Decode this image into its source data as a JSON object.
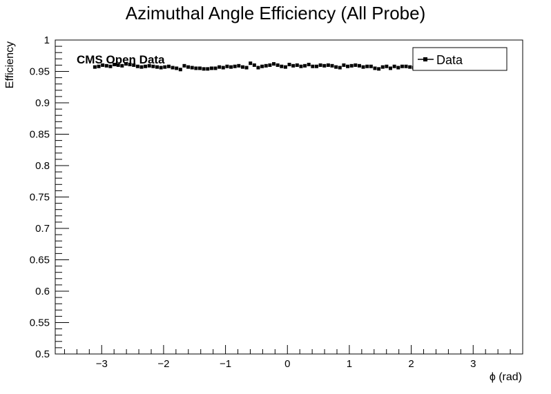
{
  "chart_data": {
    "type": "scatter",
    "title": "Azimuthal Angle Efficiency (All Probe)",
    "xlabel": "ϕ (rad)",
    "ylabel": "Efficiency",
    "xlim": [
      -3.75,
      3.8
    ],
    "ylim": [
      0.5,
      1.0
    ],
    "x_ticks": [
      -3,
      -2,
      -1,
      0,
      1,
      2,
      3
    ],
    "x_tick_labels": [
      "−3",
      "−2",
      "−1",
      "0",
      "1",
      "2",
      "3"
    ],
    "y_ticks": [
      0.5,
      0.55,
      0.6,
      0.65,
      0.7,
      0.75,
      0.8,
      0.85,
      0.9,
      0.95,
      1.0
    ],
    "y_tick_labels": [
      "0.5",
      "0.55",
      "0.6",
      "0.65",
      "0.7",
      "0.75",
      "0.8",
      "0.85",
      "0.9",
      "0.95",
      "1"
    ],
    "annotation": "CMS Open Data",
    "legend": {
      "placement": "top-right",
      "entries": [
        "Data"
      ]
    },
    "series": [
      {
        "name": "Data",
        "x": [
          -3.1101,
          -3.0473,
          -2.9845,
          -2.9216,
          -2.8588,
          -2.796,
          -2.7332,
          -2.6704,
          -2.6075,
          -2.5447,
          -2.4819,
          -2.4191,
          -2.3562,
          -2.2934,
          -2.2306,
          -2.1678,
          -2.1049,
          -2.0421,
          -1.9793,
          -1.9165,
          -1.8536,
          -1.7908,
          -1.728,
          -1.6652,
          -1.6023,
          -1.5395,
          -1.4767,
          -1.4139,
          -1.351,
          -1.2882,
          -1.2254,
          -1.1626,
          -1.0997,
          -1.0369,
          -0.9741,
          -0.9113,
          -0.8485,
          -0.7856,
          -0.7228,
          -0.66,
          -0.5972,
          -0.5343,
          -0.4715,
          -0.4087,
          -0.3459,
          -0.283,
          -0.2202,
          -0.1574,
          -0.0946,
          -0.0317,
          0.0311,
          0.0939,
          0.1567,
          0.2196,
          0.2824,
          0.3452,
          0.408,
          0.4709,
          0.5337,
          0.5965,
          0.6593,
          0.7222,
          0.785,
          0.8478,
          0.9106,
          0.9734,
          1.0363,
          1.0991,
          1.1619,
          1.2247,
          1.2876,
          1.3504,
          1.4132,
          1.476,
          1.5389,
          1.6017,
          1.6645,
          1.7273,
          1.7902,
          1.853,
          1.9158,
          1.9786,
          2.0415,
          2.1043,
          2.1671,
          2.2299,
          2.2928,
          2.3556,
          2.4184,
          2.4812,
          2.544,
          2.6069,
          2.6697,
          2.7325,
          2.7953,
          2.8582,
          2.921,
          2.9838,
          3.0466,
          3.1095
        ],
        "y": [
          0.957,
          0.958,
          0.96,
          0.959,
          0.958,
          0.961,
          0.96,
          0.959,
          0.962,
          0.961,
          0.96,
          0.958,
          0.957,
          0.958,
          0.959,
          0.958,
          0.957,
          0.956,
          0.957,
          0.958,
          0.956,
          0.955,
          0.953,
          0.959,
          0.957,
          0.956,
          0.955,
          0.955,
          0.954,
          0.954,
          0.955,
          0.955,
          0.957,
          0.956,
          0.958,
          0.957,
          0.958,
          0.959,
          0.957,
          0.956,
          0.963,
          0.96,
          0.956,
          0.958,
          0.959,
          0.96,
          0.962,
          0.96,
          0.958,
          0.957,
          0.961,
          0.959,
          0.96,
          0.958,
          0.959,
          0.961,
          0.958,
          0.958,
          0.96,
          0.959,
          0.96,
          0.959,
          0.957,
          0.956,
          0.96,
          0.958,
          0.959,
          0.96,
          0.959,
          0.957,
          0.958,
          0.958,
          0.955,
          0.954,
          0.957,
          0.958,
          0.955,
          0.958,
          0.956,
          0.958,
          0.958,
          0.957,
          0.956,
          0.957,
          0.958,
          0.957,
          0.956,
          0.958,
          0.957,
          0.959,
          0.957,
          0.958,
          0.958,
          0.956,
          0.957,
          0.959,
          0.958,
          0.957,
          0.956,
          0.958
        ]
      }
    ]
  }
}
